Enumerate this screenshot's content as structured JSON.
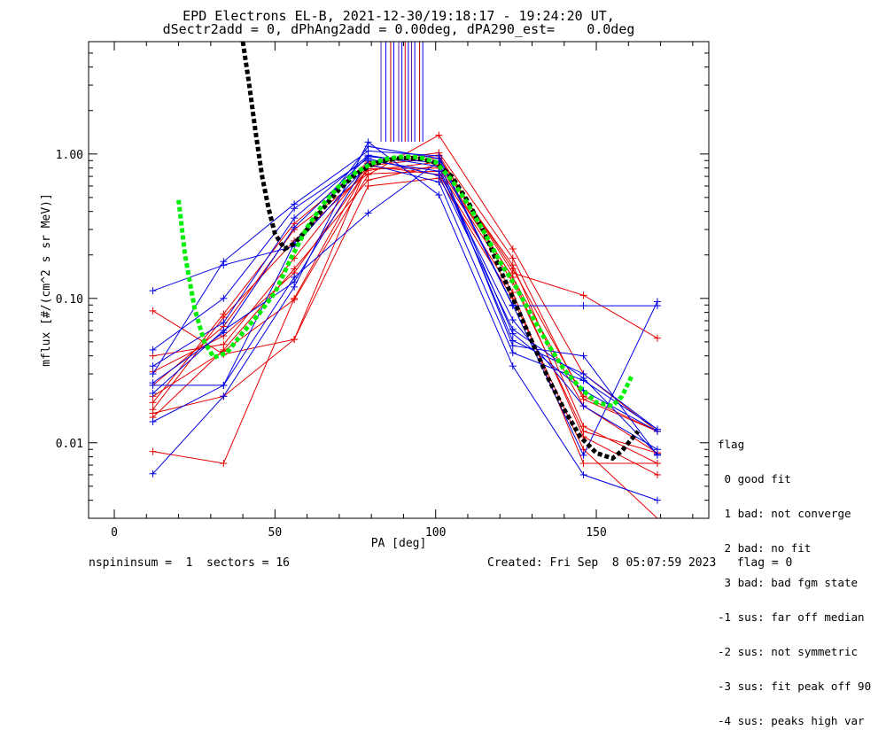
{
  "chart_data": {
    "type": "line",
    "title": "EPD Electrons EL-B, 2021-12-30/19:18:17 - 19:24:20 UT,",
    "subtitle": "dSectr2add = 0, dPhAng2add = 0.00deg, dPA290_est=    0.0deg",
    "xlabel": "PA [deg]",
    "ylabel": "mflux [#/(cm^2 s sr MeV)]",
    "xlim": [
      -8,
      185
    ],
    "ylim": [
      0.003,
      6.0
    ],
    "yscale": "log",
    "xticks": [
      "0",
      "50",
      "100",
      "150"
    ],
    "yticks": [
      "0.01",
      "0.10",
      "1.00"
    ],
    "pa_bins": [
      12,
      34,
      56,
      79,
      101,
      124,
      146,
      169
    ],
    "red_series": [
      [
        0.0087,
        0.0072,
        0.1,
        0.83,
        0.72,
        0.11,
        0.0072,
        0.0072
      ],
      [
        0.016,
        0.021,
        0.052,
        0.6,
        0.68,
        0.1,
        0.009,
        0.0029
      ],
      [
        0.021,
        0.043,
        0.098,
        0.72,
        1.35,
        0.22,
        0.03,
        0.012
      ],
      [
        0.031,
        0.055,
        0.15,
        0.79,
        0.8,
        0.14,
        0.018,
        0.0085
      ],
      [
        0.04,
        0.048,
        0.19,
        0.83,
        0.94,
        0.16,
        0.021,
        0.012
      ],
      [
        0.082,
        0.041,
        0.052,
        0.86,
        0.98,
        0.15,
        0.105,
        0.053
      ],
      [
        0.017,
        0.074,
        0.25,
        0.77,
        0.88,
        0.17,
        0.013,
        0.0072
      ],
      [
        0.025,
        0.064,
        0.3,
        0.73,
        0.76,
        0.13,
        0.012,
        0.0085
      ],
      [
        0.019,
        0.078,
        0.33,
        0.88,
        1.02,
        0.19,
        0.02,
        0.012
      ],
      [
        0.015,
        0.044,
        0.16,
        0.66,
        0.84,
        0.14,
        0.011,
        0.006
      ]
    ],
    "blue_series": [
      [
        0.0061,
        0.021,
        0.12,
        1.21,
        0.52,
        0.034,
        0.006,
        0.004
      ],
      [
        0.014,
        0.025,
        0.14,
        0.39,
        0.89,
        0.047,
        0.04,
        0.0082
      ],
      [
        0.025,
        0.025,
        0.24,
        1.13,
        0.93,
        0.089,
        0.089,
        0.089
      ],
      [
        0.026,
        0.058,
        0.31,
        0.96,
        0.87,
        0.057,
        0.023,
        0.012
      ],
      [
        0.034,
        0.068,
        0.36,
        0.98,
        0.82,
        0.051,
        0.03,
        0.0124
      ],
      [
        0.044,
        0.1,
        0.42,
        0.93,
        0.71,
        0.061,
        0.028,
        0.0083
      ],
      [
        0.113,
        0.17,
        0.23,
        0.85,
        0.64,
        0.042,
        0.027,
        0.0124
      ],
      [
        0.03,
        0.18,
        0.45,
        1.05,
        0.97,
        0.09,
        0.0082,
        0.095
      ],
      [
        0.022,
        0.06,
        0.13,
        0.9,
        0.76,
        0.071,
        0.018,
        0.009
      ]
    ],
    "fit_green": {
      "x": [
        20,
        22,
        25,
        28,
        31,
        35,
        40,
        45,
        50,
        55,
        60,
        65,
        70,
        75,
        80,
        85,
        90,
        95,
        100,
        105,
        110,
        115,
        120,
        125,
        130,
        135,
        140,
        145,
        150,
        155,
        158,
        161
      ],
      "y": [
        0.48,
        0.2,
        0.085,
        0.05,
        0.039,
        0.042,
        0.058,
        0.078,
        0.11,
        0.19,
        0.31,
        0.45,
        0.6,
        0.74,
        0.86,
        0.93,
        0.96,
        0.95,
        0.88,
        0.66,
        0.45,
        0.29,
        0.18,
        0.12,
        0.075,
        0.048,
        0.032,
        0.024,
        0.019,
        0.018,
        0.021,
        0.029
      ]
    },
    "fit_black": {
      "x": [
        40,
        42,
        44,
        46,
        48,
        50,
        53,
        56,
        60,
        65,
        70,
        75,
        80,
        85,
        90,
        95,
        100,
        105,
        110,
        115,
        120,
        125,
        130,
        135,
        140,
        145,
        150,
        155,
        158,
        160,
        163
      ],
      "y": [
        6.0,
        3.0,
        1.4,
        0.7,
        0.42,
        0.28,
        0.22,
        0.24,
        0.3,
        0.42,
        0.57,
        0.72,
        0.84,
        0.91,
        0.94,
        0.93,
        0.87,
        0.7,
        0.47,
        0.29,
        0.16,
        0.09,
        0.05,
        0.028,
        0.017,
        0.011,
        0.0085,
        0.0078,
        0.0088,
        0.01,
        0.012
      ]
    },
    "spikes": {
      "x": [
        83,
        84.5,
        86,
        87,
        88.5,
        89.5,
        90.5,
        91.5,
        92.5,
        93.5,
        95,
        96
      ],
      "colors": [
        "#4b2aa0",
        "#0000ff",
        "#c00000",
        "#0000ff",
        "#5e20a0",
        "#0000ff",
        "#c00000",
        "#0000ff",
        "#6020a0",
        "#0000ff",
        "#c00000",
        "#0000ff"
      ]
    },
    "colors": {
      "red": "#e60000",
      "blue": "#0000e6",
      "green": "#00f000",
      "black": "#000000"
    }
  },
  "legend": {
    "title": "flag",
    "items": [
      " 0 good fit",
      " 1 bad: not converge",
      " 2 bad: no fit",
      " 3 bad: bad fgm state",
      "-1 sus: far off median",
      "-2 sus: not symmetric",
      "-3 sus: fit peak off 90",
      "-4 sus: peaks high var"
    ]
  },
  "footer": {
    "left": "nspininsum =  1  sectors = 16",
    "right": "Created: Fri Sep  8 05:07:59 2023   flag = 0"
  }
}
